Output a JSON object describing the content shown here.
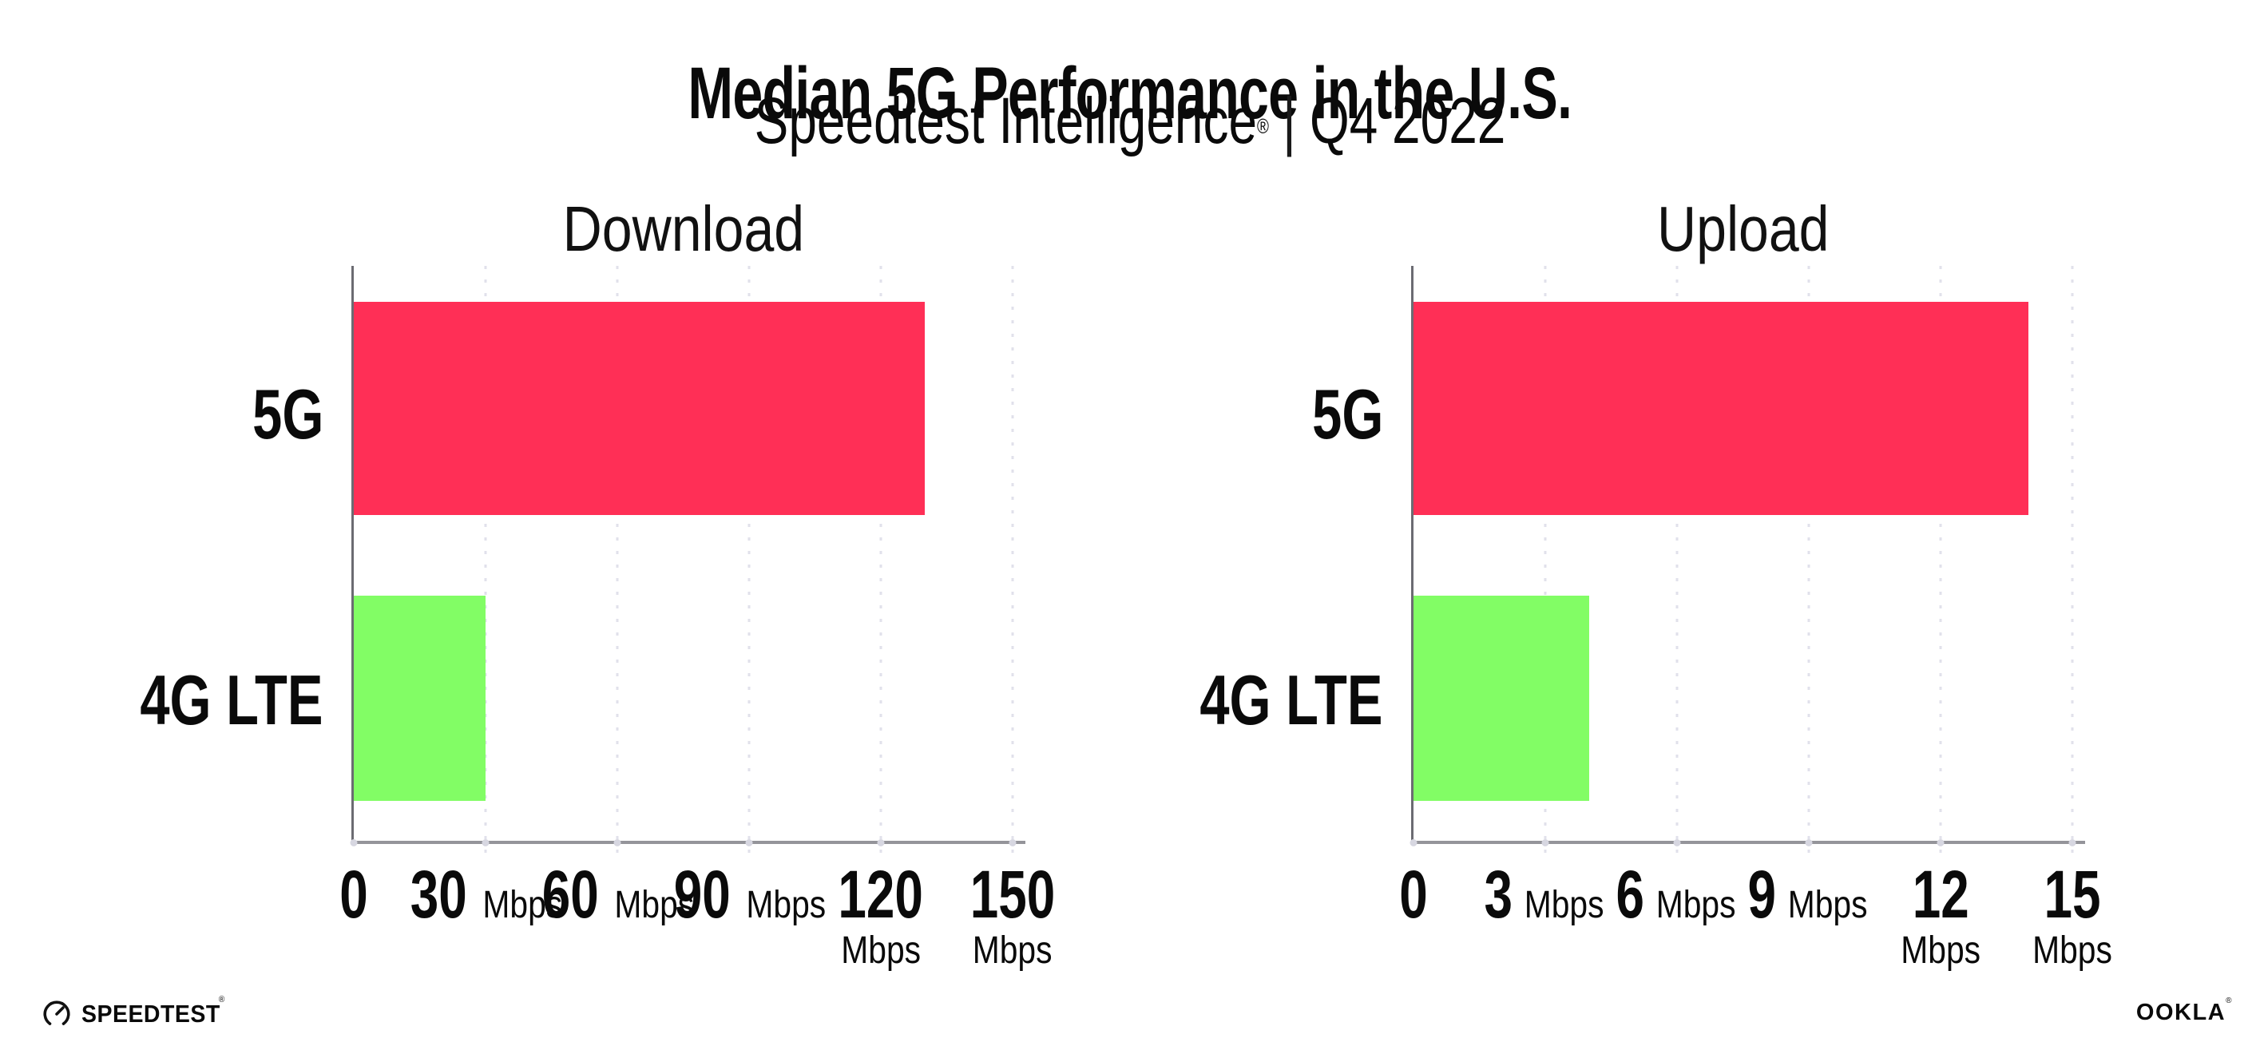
{
  "title": "Median 5G Performance in the U.S.",
  "subtitle": {
    "product": "Speedtest Intelligence",
    "registered_mark": "®",
    "separator": "|",
    "period": "Q4 2022"
  },
  "colors": {
    "bar_5g": "#FF2F56",
    "bar_4g_lte": "#82FD65",
    "left_spine": "#6b6b72",
    "bottom_spine": "#94949a",
    "gridline": "#e1e1eb",
    "text": "#0a0a0a",
    "background": "#ffffff"
  },
  "chart_data": [
    {
      "type": "bar",
      "orientation": "horizontal",
      "title": "Download",
      "categories": [
        "5G",
        "4G LTE"
      ],
      "values": [
        130,
        30
      ],
      "unit": "Mbps",
      "xlim": [
        0,
        150
      ],
      "xticks": [
        0,
        30,
        60,
        90,
        120,
        150
      ],
      "xtick_unit_label": "Mbps",
      "grid": "vertical-dotted",
      "legend": "none",
      "bar_colors": [
        "#FF2F56",
        "#82FD65"
      ]
    },
    {
      "type": "bar",
      "orientation": "horizontal",
      "title": "Upload",
      "categories": [
        "5G",
        "4G LTE"
      ],
      "values": [
        14,
        4
      ],
      "unit": "Mbps",
      "xlim": [
        0,
        15
      ],
      "xticks": [
        0,
        3,
        6,
        9,
        12,
        15
      ],
      "xtick_unit_label": "Mbps",
      "grid": "vertical-dotted",
      "legend": "none",
      "bar_colors": [
        "#FF2F56",
        "#82FD65"
      ]
    }
  ],
  "footer": {
    "speedtest_logo_icon": "gauge-icon",
    "speedtest_logo_text": "SPEEDTEST",
    "speedtest_registered_mark": "®",
    "ookla_logo_text": "OOKLA",
    "ookla_registered_mark": "®"
  }
}
